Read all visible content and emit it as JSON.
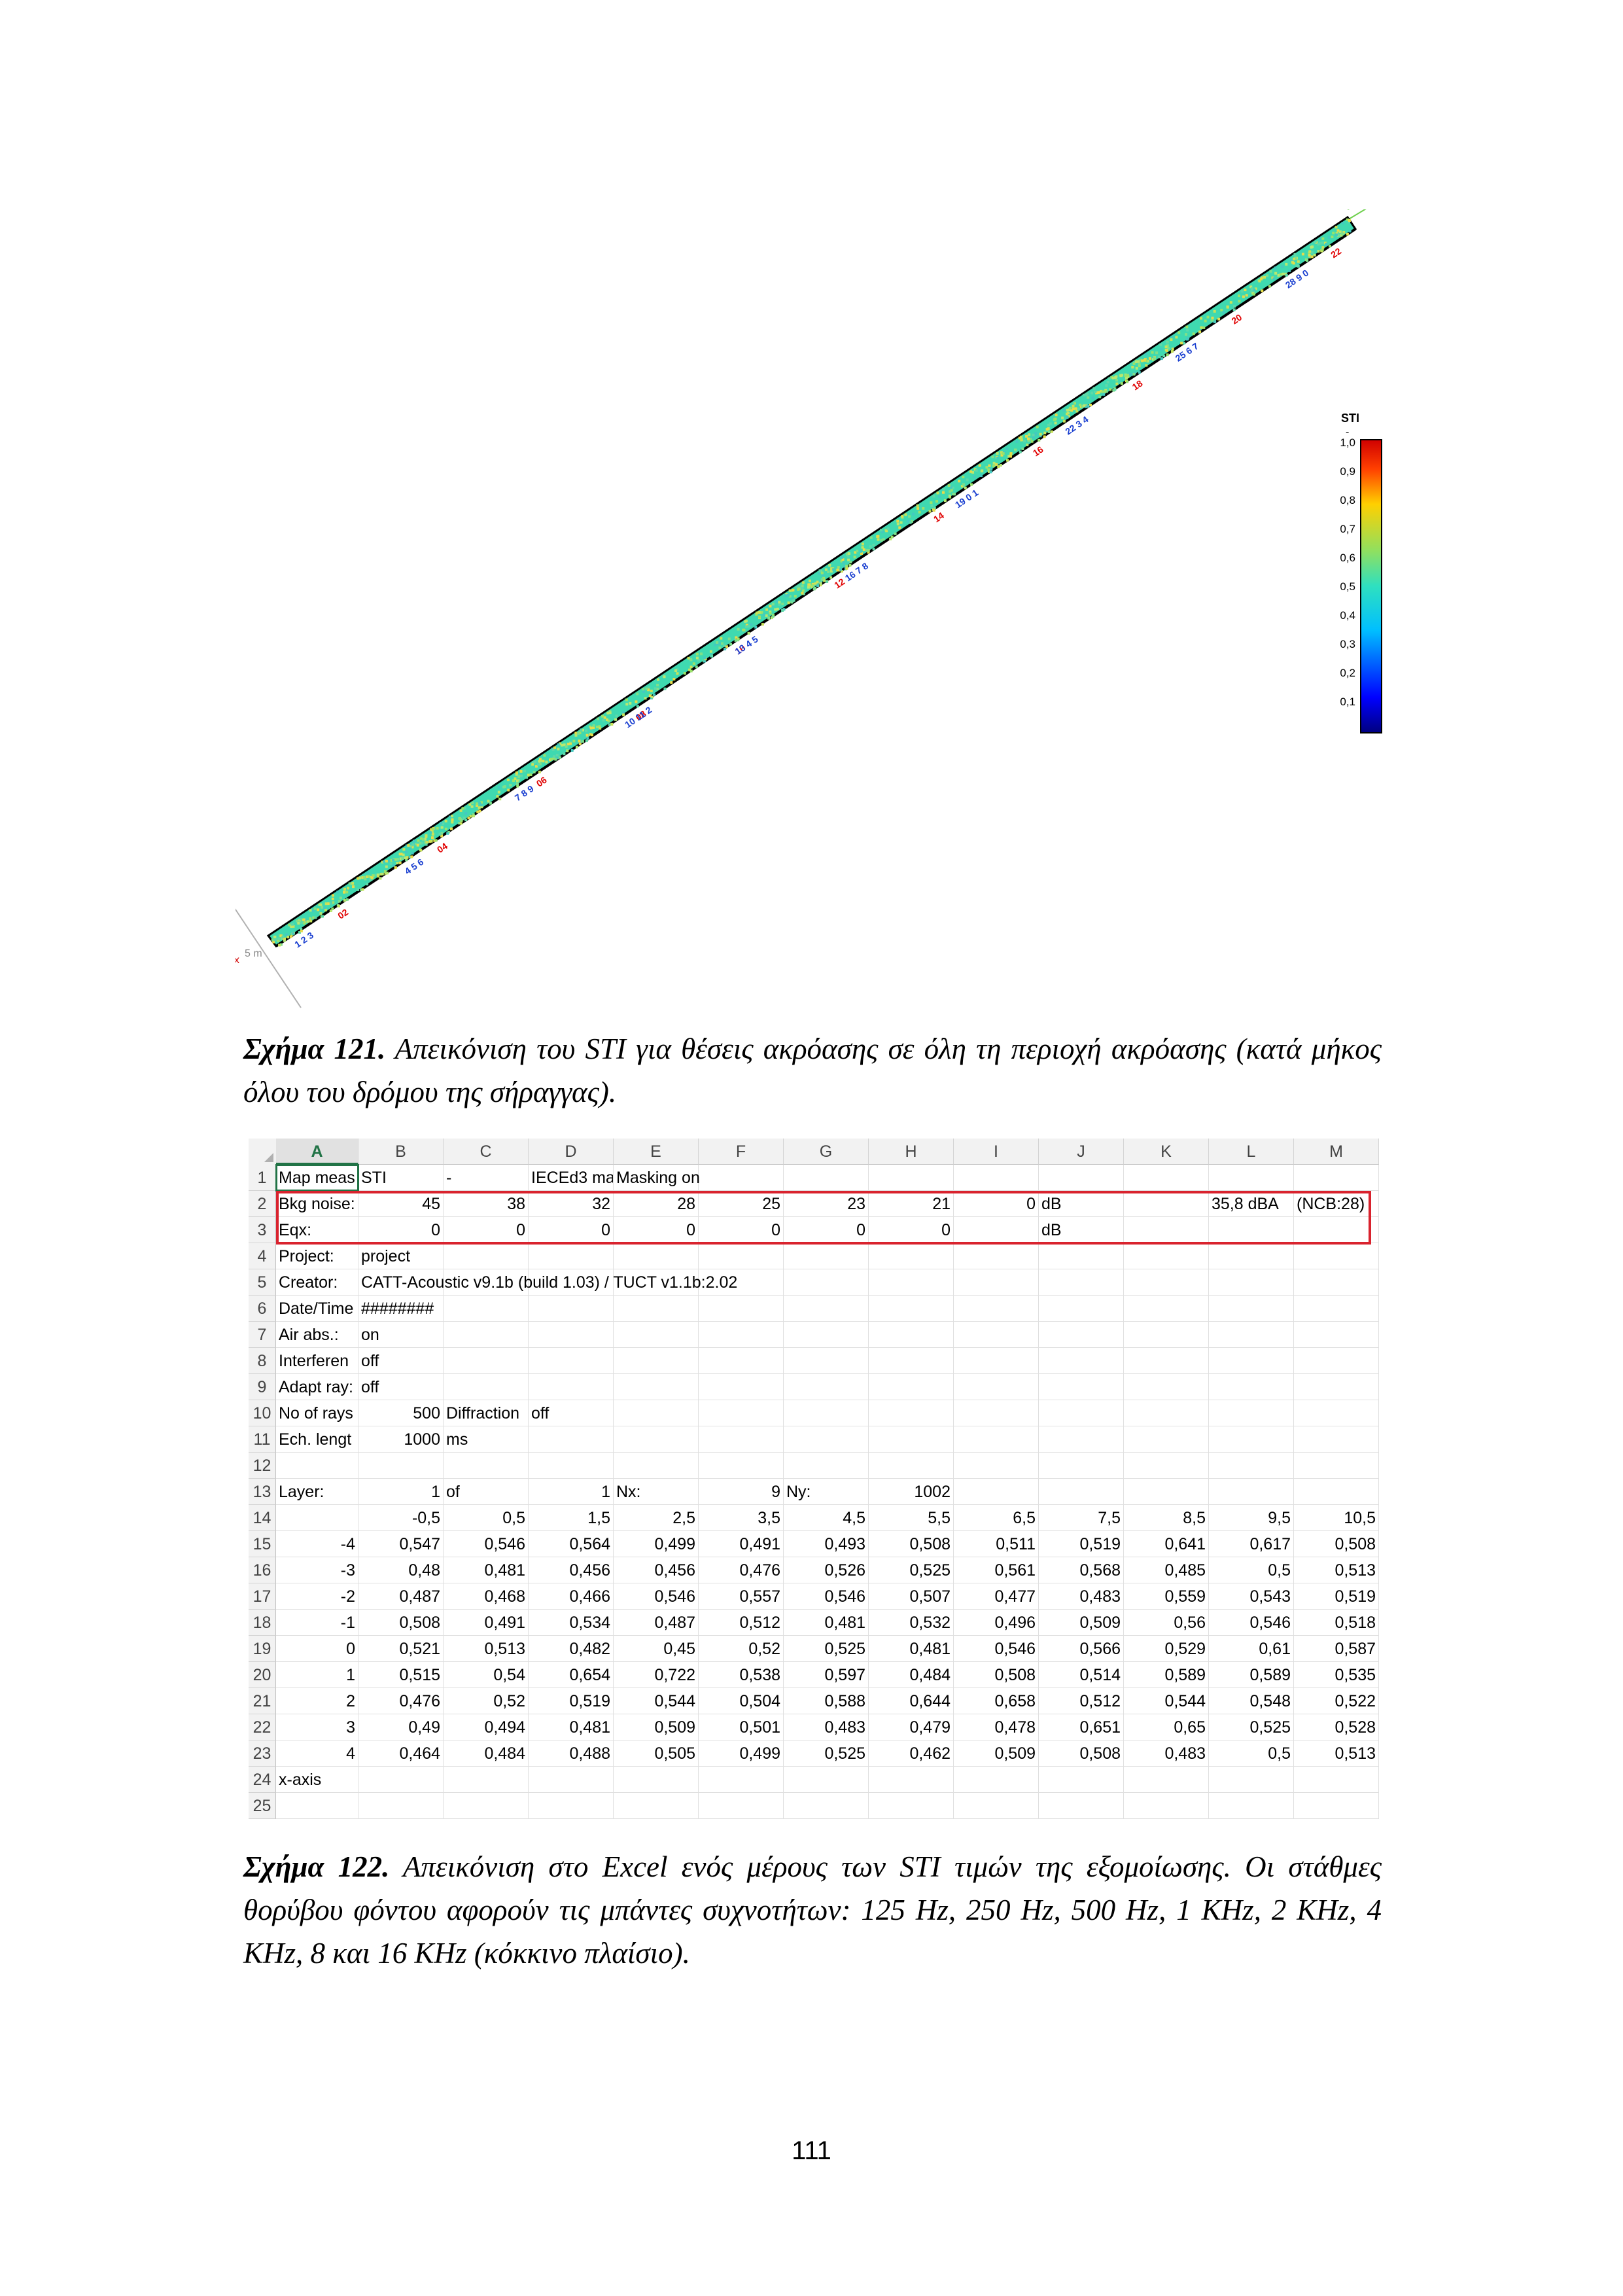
{
  "figure121": {
    "colorbar_title": "STI",
    "colorbar_unit": "-",
    "colorbar_ticks": [
      "1,0",
      "0,9",
      "0,8",
      "0,7",
      "0,6",
      "0,5",
      "0,4",
      "0,3",
      "0,2",
      "0,1"
    ],
    "axis_label": "5 m",
    "red_labels": [
      "02",
      "04",
      "06",
      "08",
      "10",
      "12",
      "14",
      "16",
      "18",
      "20",
      "22"
    ],
    "blue_labels": [
      "1 2 3",
      "4 5 6",
      "7 8 9",
      "10 11 2",
      "13 4 5",
      "16 7 8",
      "19 0 1",
      "22 3 4",
      "25 6 7",
      "28 9 0"
    ]
  },
  "caption121": {
    "label": "Σχήμα 121.",
    "text": " Απεικόνιση του STI για θέσεις ακρόασης σε όλη τη περιοχή ακρόασης (κατά μήκος όλου του δρόμου της σήραγγας)."
  },
  "excel": {
    "columns": [
      "A",
      "B",
      "C",
      "D",
      "E",
      "F",
      "G",
      "H",
      "I",
      "J",
      "K",
      "L",
      "M"
    ],
    "rows": [
      {
        "n": "1",
        "cells": {
          "A": "Map meas",
          "B": "STI",
          "C": "-",
          "D": "IECEd3 ma",
          "E": "Masking on"
        }
      },
      {
        "n": "2",
        "cells": {
          "A": "Bkg noise:",
          "B": "45",
          "C": "38",
          "D": "32",
          "E": "28",
          "F": "25",
          "G": "23",
          "H": "21",
          "I": "0",
          "J": "dB",
          "L": "35,8 dBA",
          "M": "(NCB:28)"
        }
      },
      {
        "n": "3",
        "cells": {
          "A": "Eqx:",
          "B": "0",
          "C": "0",
          "D": "0",
          "E": "0",
          "F": "0",
          "G": "0",
          "H": "0",
          "J": "dB"
        }
      },
      {
        "n": "4",
        "cells": {
          "A": "Project:",
          "B": "project"
        }
      },
      {
        "n": "5",
        "cells": {
          "A": "Creator:",
          "B": "CATT-Acoustic v9.1b (build 1.03) / TUCT v1.1b:2.02"
        }
      },
      {
        "n": "6",
        "cells": {
          "A": "Date/Time",
          "B": "########"
        }
      },
      {
        "n": "7",
        "cells": {
          "A": "Air abs.:",
          "B": "on"
        }
      },
      {
        "n": "8",
        "cells": {
          "A": "Interferen",
          "B": "off"
        }
      },
      {
        "n": "9",
        "cells": {
          "A": "Adapt ray:",
          "B": "off"
        }
      },
      {
        "n": "10",
        "cells": {
          "A": "No of rays",
          "B": "500",
          "C": "Diffraction",
          "D": "off"
        }
      },
      {
        "n": "11",
        "cells": {
          "A": "Ech. lengt",
          "B": "1000",
          "C": "ms"
        }
      },
      {
        "n": "12",
        "cells": {}
      },
      {
        "n": "13",
        "cells": {
          "A": "Layer:",
          "B": "1",
          "C": "of",
          "D": "1",
          "E": "Nx:",
          "F": "9",
          "G": "Ny:",
          "H": "1002"
        }
      },
      {
        "n": "14",
        "cells": {
          "B": "-0,5",
          "C": "0,5",
          "D": "1,5",
          "E": "2,5",
          "F": "3,5",
          "G": "4,5",
          "H": "5,5",
          "I": "6,5",
          "J": "7,5",
          "K": "8,5",
          "L": "9,5",
          "M": "10,5"
        }
      },
      {
        "n": "15",
        "cells": {
          "A": "-4",
          "B": "0,547",
          "C": "0,546",
          "D": "0,564",
          "E": "0,499",
          "F": "0,491",
          "G": "0,493",
          "H": "0,508",
          "I": "0,511",
          "J": "0,519",
          "K": "0,641",
          "L": "0,617",
          "M": "0,508"
        }
      },
      {
        "n": "16",
        "cells": {
          "A": "-3",
          "B": "0,48",
          "C": "0,481",
          "D": "0,456",
          "E": "0,456",
          "F": "0,476",
          "G": "0,526",
          "H": "0,525",
          "I": "0,561",
          "J": "0,568",
          "K": "0,485",
          "L": "0,5",
          "M": "0,513"
        }
      },
      {
        "n": "17",
        "cells": {
          "A": "-2",
          "B": "0,487",
          "C": "0,468",
          "D": "0,466",
          "E": "0,546",
          "F": "0,557",
          "G": "0,546",
          "H": "0,507",
          "I": "0,477",
          "J": "0,483",
          "K": "0,559",
          "L": "0,543",
          "M": "0,519"
        }
      },
      {
        "n": "18",
        "cells": {
          "A": "-1",
          "B": "0,508",
          "C": "0,491",
          "D": "0,534",
          "E": "0,487",
          "F": "0,512",
          "G": "0,481",
          "H": "0,532",
          "I": "0,496",
          "J": "0,509",
          "K": "0,56",
          "L": "0,546",
          "M": "0,518"
        }
      },
      {
        "n": "19",
        "cells": {
          "A": "0",
          "B": "0,521",
          "C": "0,513",
          "D": "0,482",
          "E": "0,45",
          "F": "0,52",
          "G": "0,525",
          "H": "0,481",
          "I": "0,546",
          "J": "0,566",
          "K": "0,529",
          "L": "0,61",
          "M": "0,587"
        }
      },
      {
        "n": "20",
        "cells": {
          "A": "1",
          "B": "0,515",
          "C": "0,54",
          "D": "0,654",
          "E": "0,722",
          "F": "0,538",
          "G": "0,597",
          "H": "0,484",
          "I": "0,508",
          "J": "0,514",
          "K": "0,589",
          "L": "0,589",
          "M": "0,535"
        }
      },
      {
        "n": "21",
        "cells": {
          "A": "2",
          "B": "0,476",
          "C": "0,52",
          "D": "0,519",
          "E": "0,544",
          "F": "0,504",
          "G": "0,588",
          "H": "0,644",
          "I": "0,658",
          "J": "0,512",
          "K": "0,544",
          "L": "0,548",
          "M": "0,522"
        }
      },
      {
        "n": "22",
        "cells": {
          "A": "3",
          "B": "0,49",
          "C": "0,494",
          "D": "0,481",
          "E": "0,509",
          "F": "0,501",
          "G": "0,483",
          "H": "0,479",
          "I": "0,478",
          "J": "0,651",
          "K": "0,65",
          "L": "0,525",
          "M": "0,528"
        }
      },
      {
        "n": "23",
        "cells": {
          "A": "4",
          "B": "0,464",
          "C": "0,484",
          "D": "0,488",
          "E": "0,505",
          "F": "0,499",
          "G": "0,525",
          "H": "0,462",
          "I": "0,509",
          "J": "0,508",
          "K": "0,483",
          "L": "0,5",
          "M": "0,513"
        }
      },
      {
        "n": "24",
        "cells": {
          "A": "x-axis"
        }
      },
      {
        "n": "25",
        "cells": {}
      }
    ]
  },
  "caption122": {
    "label": "Σχήμα 122.",
    "text": " Απεικόνιση στο Excel ενός μέρους των STI τιμών της εξομοίωσης. Οι στάθμες θορύβου φόντου αφορούν τις μπάντες συχνοτήτων: 125 Hz, 250 Hz, 500 Hz, 1 KHz, 2 KHz, 4 KHz, 8 και 16 KHz (κόκκινο πλαίσιο)."
  },
  "page_number": "111",
  "colors": {
    "excel_green": "#217346",
    "red_frame": "#d9232e"
  }
}
